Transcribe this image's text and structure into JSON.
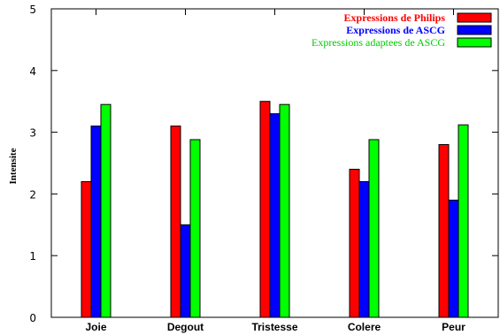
{
  "chart_data": {
    "type": "bar",
    "title": "",
    "xlabel": "",
    "ylabel": "Intensite",
    "ylim": [
      0,
      5
    ],
    "yticks": [
      0,
      1,
      2,
      3,
      4,
      5
    ],
    "grid": false,
    "legend_position": "top-right",
    "categories": [
      "Joie",
      "Degout",
      "Tristesse",
      "Colere",
      "Peur"
    ],
    "series": [
      {
        "name": "Expressions de Philips",
        "color": "#ff0000",
        "label_color": "#ff0000",
        "label_bold": true,
        "values": [
          2.2,
          3.1,
          3.5,
          2.4,
          2.8
        ]
      },
      {
        "name": "Expressions de ASCG",
        "color": "#0000ff",
        "label_color": "#0000ff",
        "label_bold": true,
        "values": [
          3.1,
          1.5,
          3.3,
          2.2,
          1.9
        ]
      },
      {
        "name": "Expressions adaptees de ASCG",
        "color": "#00ff00",
        "label_color": "#00cc00",
        "label_bold": false,
        "values": [
          3.45,
          2.88,
          3.45,
          2.88,
          3.12
        ]
      }
    ]
  }
}
